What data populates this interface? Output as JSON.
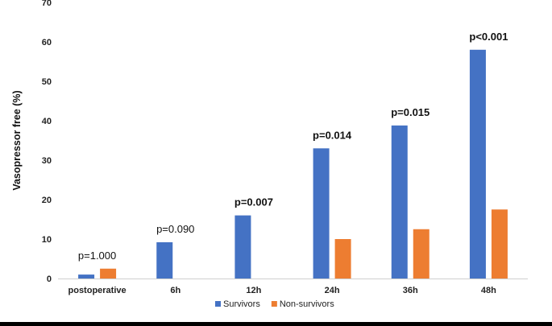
{
  "chart_data": {
    "type": "bar",
    "title": "",
    "xlabel": "",
    "ylabel": "Vasopressor free (%)",
    "ylim": [
      0,
      70
    ],
    "yticks": [
      0,
      10,
      20,
      30,
      40,
      50,
      60,
      70
    ],
    "grid": false,
    "legend_position": "bottom-center",
    "categories": [
      "postoperative",
      "6h",
      "12h",
      "24h",
      "36h",
      "48h"
    ],
    "series": [
      {
        "name": "Survivors",
        "color": "#4472C4",
        "values": [
          1,
          9.2,
          16,
          33,
          38.8,
          58
        ]
      },
      {
        "name": "Non-survivors",
        "color": "#ED7D31",
        "values": [
          2.5,
          0,
          0,
          10,
          12.5,
          17.5
        ]
      }
    ],
    "annotations": [
      {
        "text": "p=1.000",
        "bold": false
      },
      {
        "text": "p=0.090",
        "bold": false
      },
      {
        "text": "p=0.007",
        "bold": true
      },
      {
        "text": "p=0.014",
        "bold": true
      },
      {
        "text": "p=0.015",
        "bold": true
      },
      {
        "text": "p<0.001",
        "bold": true
      }
    ]
  }
}
